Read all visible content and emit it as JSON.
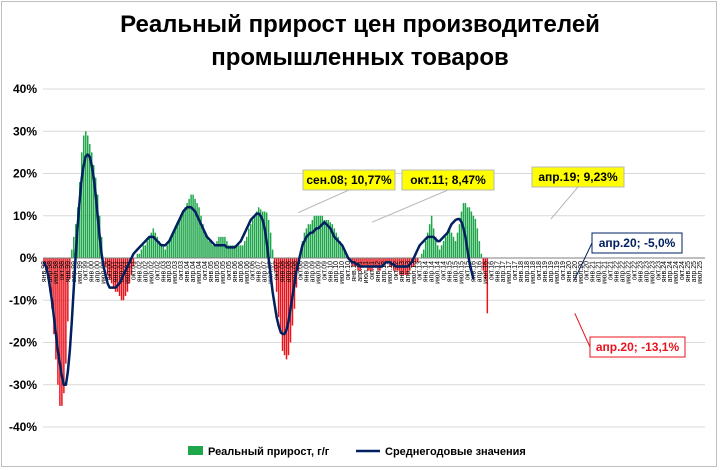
{
  "chart_data": {
    "type": "bar",
    "title_line1": "Реальный прирост цен производителей",
    "title_line2": "промышленных товаров",
    "ylim": [
      -40,
      40
    ],
    "y_ticks": [
      "40%",
      "30%",
      "20%",
      "10%",
      "0%",
      "-10%",
      "-20%",
      "-30%",
      "-40%"
    ],
    "x_ticks": [
      "янв.98",
      "апр.98",
      "июл.98",
      "окт.98",
      "янв.99",
      "апр.99",
      "июл.99",
      "окт.99",
      "янв.00",
      "апр.00",
      "июл.00",
      "окт.00",
      "янв.01",
      "апр.01",
      "июл.01",
      "окт.01",
      "янв.02",
      "апр.02",
      "июл.02",
      "окт.02",
      "янв.03",
      "апр.03",
      "июл.03",
      "окт.03",
      "янв.04",
      "апр.04",
      "июл.04",
      "окт.04",
      "янв.05",
      "апр.05",
      "июл.05",
      "окт.05",
      "янв.06",
      "апр.06",
      "июл.06",
      "окт.06",
      "янв.07",
      "апр.07",
      "июл.07",
      "окт.07",
      "янв.08",
      "апр.08",
      "июл.08",
      "окт.08",
      "янв.09",
      "апр.09",
      "июл.09",
      "окт.09",
      "янв.10",
      "апр.10",
      "июл.10",
      "окт.10",
      "янв.11",
      "апр.11",
      "июл.11",
      "окт.11",
      "янв.12",
      "апр.12",
      "июл.12",
      "окт.12",
      "янв.13",
      "апр.13",
      "июл.13",
      "окт.13",
      "янв.14",
      "апр.14",
      "июл.14",
      "окт.14",
      "янв.15",
      "апр.15",
      "июл.15",
      "окт.15",
      "янв.16",
      "апр.16",
      "июл.16",
      "окт.16",
      "янв.17",
      "апр.17",
      "июл.17",
      "окт.17",
      "янв.18",
      "апр.18",
      "июл.18",
      "окт.18",
      "янв.19",
      "апр.19",
      "июл.19",
      "окт.19",
      "янв.20",
      "апр.20",
      "июл.20",
      "окт.20",
      "янв.21",
      "апр.21",
      "июл.21",
      "окт.21",
      "янв.22",
      "апр.22",
      "июл.22",
      "окт.22",
      "янв.23",
      "апр.23",
      "июл.23",
      "окт.23",
      "янв.24",
      "апр.24",
      "июл.24",
      "окт.24",
      "янв.25",
      "апр.25",
      "июл.25"
    ],
    "x_tick_step": 3,
    "series": [
      {
        "name": "Реальный прирост, г/г",
        "type": "bar",
        "color_positive": "#1ea64a",
        "color_negative": "#e8141d",
        "start": "янв.98",
        "values": [
          -2,
          -3,
          -5,
          -8,
          -12,
          -18,
          -24,
          -30,
          -35,
          -35,
          -32,
          -25,
          -15,
          -5,
          2,
          5,
          8,
          12,
          18,
          25,
          29,
          30,
          29,
          27,
          25,
          22,
          19,
          15,
          10,
          5,
          0,
          -2,
          -4,
          -5,
          -6,
          -7,
          -8,
          -8,
          -9,
          -10,
          -10,
          -9,
          -8,
          -6,
          -4,
          -2,
          0,
          1,
          1,
          2,
          3,
          3,
          4,
          5,
          6,
          7,
          6,
          5,
          4,
          3,
          3,
          2,
          3,
          4,
          5,
          6,
          7,
          8,
          9,
          10,
          11,
          12,
          13,
          14,
          15,
          15,
          14,
          13,
          12,
          10,
          8,
          6,
          5,
          4,
          4,
          3,
          3,
          4,
          5,
          5,
          5,
          5,
          4,
          3,
          3,
          3,
          3,
          3,
          3,
          3,
          3,
          4,
          5,
          7,
          8,
          9,
          10,
          11,
          12,
          11.5,
          11,
          11,
          10.77,
          9,
          6,
          2,
          -3,
          -8,
          -14,
          -18,
          -22,
          -23,
          -24,
          -23,
          -20,
          -16,
          -12,
          -7,
          -3,
          1,
          4,
          6,
          7,
          8,
          8,
          9,
          10,
          10,
          10,
          10,
          10,
          9,
          9,
          9,
          8.47,
          8,
          7,
          6,
          5,
          4,
          3,
          2,
          1,
          0,
          -1,
          -2,
          -2,
          -2,
          -3,
          -3,
          -2,
          -2,
          -2,
          -3,
          -3,
          -3,
          -2,
          -2,
          -3,
          -3,
          -2,
          -2,
          -1,
          -1,
          -2,
          -2,
          -3,
          -3,
          -3,
          -4,
          -4,
          -4,
          -4,
          -4,
          -3,
          -2,
          -2,
          -1,
          -1,
          0,
          1,
          2,
          4,
          6,
          8,
          10,
          7,
          5,
          3,
          2,
          3,
          4,
          5,
          6,
          7,
          6,
          5,
          4,
          6,
          8,
          11,
          13,
          13,
          12,
          12,
          11,
          10,
          9.23,
          7,
          4,
          1,
          -3,
          -5,
          -13.1
        ],
        "label_points": [
          {
            "label": "сен.08; 10,77%",
            "value": 10.77
          },
          {
            "label": "окт.11; 8,47%",
            "value": 8.47
          },
          {
            "label": "апр.19; 9,23%",
            "value": 9.23
          },
          {
            "label": "апр.20; -13,1%",
            "value": -13.1
          }
        ]
      },
      {
        "name": "Среднегодовые значения",
        "type": "line",
        "color": "#002060",
        "start": "янв.98",
        "values": [
          -1,
          -2,
          -4,
          -7,
          -10,
          -14,
          -18,
          -22,
          -25,
          -28,
          -30,
          -30,
          -27,
          -22,
          -15,
          -7,
          1,
          8,
          14,
          19,
          22,
          24,
          24.5,
          24,
          22,
          19,
          15,
          10,
          5,
          1,
          -2,
          -4,
          -6,
          -7,
          -7,
          -7,
          -7,
          -6.5,
          -6,
          -5,
          -4,
          -3,
          -2,
          -1,
          0,
          1,
          1.5,
          2,
          2.5,
          3,
          3.5,
          4,
          4.5,
          5,
          5,
          5,
          4.5,
          4,
          3.5,
          3,
          3,
          3,
          3.5,
          4,
          5,
          6,
          7,
          8,
          9,
          10,
          11,
          11.5,
          12,
          12,
          12,
          11.5,
          11,
          10,
          9,
          8,
          7,
          6,
          5,
          4.5,
          4,
          3.5,
          3,
          3,
          3,
          3,
          3,
          3,
          2.5,
          2.5,
          2.5,
          2.5,
          2.5,
          3,
          3.5,
          4,
          5,
          6,
          7,
          8,
          9,
          9.5,
          10,
          10.5,
          10.5,
          10,
          9,
          7,
          4,
          0,
          -4,
          -8,
          -11,
          -14,
          -16,
          -17.5,
          -18,
          -18,
          -17,
          -15,
          -12,
          -9,
          -6,
          -3,
          -1,
          1,
          3,
          4,
          5,
          5.5,
          6,
          6,
          6.5,
          7,
          7,
          7.5,
          8,
          8.47,
          8,
          7.5,
          7,
          6,
          5,
          4.5,
          4,
          3.5,
          3,
          2,
          1,
          0,
          -0.5,
          -1,
          -1,
          -1.5,
          -1.5,
          -2,
          -2,
          -2,
          -2,
          -2,
          -2,
          -2,
          -2,
          -2,
          -2,
          -2,
          -2,
          -1.5,
          -1,
          -1,
          -1,
          -1.5,
          -1.5,
          -2,
          -2,
          -2,
          -2,
          -2,
          -2,
          -2,
          -1.5,
          -1,
          0,
          1,
          2,
          3,
          3.5,
          4,
          4.5,
          5,
          5,
          5,
          5,
          4.5,
          4,
          4,
          4.5,
          5,
          5.5,
          6,
          7,
          8,
          8.5,
          9,
          9.2,
          9.23,
          8.5,
          7,
          5,
          2,
          -1,
          -3,
          -5
        ],
        "label_points": [
          {
            "label": "апр.20; -5,0%",
            "value": -5.0
          }
        ]
      }
    ],
    "callouts": [
      {
        "text": "сен.08; 10,77%",
        "month_index": 128,
        "value": 10.77,
        "style": "yellow"
      },
      {
        "text": "окт.11; 8,47%",
        "month_index": 165,
        "value": 8.47,
        "style": "yellow"
      },
      {
        "text": "апр.19; 9,23%",
        "month_index": 255,
        "value": 9.23,
        "style": "yellow"
      },
      {
        "text": "апр.20; -5,0%",
        "month_index": 267,
        "value": -5.0,
        "style": "navy"
      },
      {
        "text": "апр.20; -13,1%",
        "month_index": 267,
        "value": -13.1,
        "style": "red"
      }
    ],
    "legend": [
      {
        "name": "Реальный прирост, г/г",
        "kind": "bar",
        "color": "#1ea64a"
      },
      {
        "name": "Среднегодовые значения",
        "kind": "line",
        "color": "#002060"
      }
    ],
    "legend_position": "bottom"
  }
}
